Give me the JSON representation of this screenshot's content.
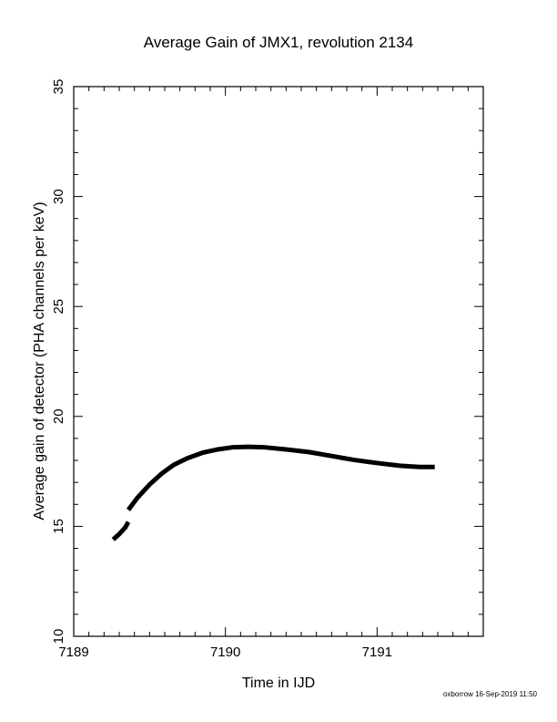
{
  "chart_data": {
    "type": "line",
    "title": "Average Gain of JMX1, revolution 2134",
    "xlabel": "Time in IJD",
    "ylabel": "Average gain of detector (PHA channels per keV)",
    "xlim": [
      7189,
      7191.7
    ],
    "ylim": [
      10,
      35
    ],
    "x_ticks": [
      7189,
      7190,
      7191
    ],
    "x_tick_labels": [
      "7189",
      "7190",
      "7191"
    ],
    "y_ticks": [
      10,
      15,
      20,
      25,
      30,
      35
    ],
    "y_tick_labels": [
      "10",
      "15",
      "20",
      "25",
      "30",
      "35"
    ],
    "grid": false,
    "line_color": "#000000",
    "series": [
      {
        "values": [
          {
            "x": 7189.26,
            "y": 14.4
          },
          {
            "x": 7189.3,
            "y": 14.65
          },
          {
            "x": 7189.34,
            "y": 14.95
          },
          {
            "x": 7189.36,
            "y": 15.2
          }
        ]
      },
      {
        "values": [
          {
            "x": 7189.36,
            "y": 15.75
          },
          {
            "x": 7189.42,
            "y": 16.3
          },
          {
            "x": 7189.5,
            "y": 16.9
          },
          {
            "x": 7189.58,
            "y": 17.4
          },
          {
            "x": 7189.66,
            "y": 17.8
          },
          {
            "x": 7189.75,
            "y": 18.1
          },
          {
            "x": 7189.85,
            "y": 18.35
          },
          {
            "x": 7189.95,
            "y": 18.5
          },
          {
            "x": 7190.05,
            "y": 18.6
          },
          {
            "x": 7190.15,
            "y": 18.62
          },
          {
            "x": 7190.25,
            "y": 18.6
          },
          {
            "x": 7190.4,
            "y": 18.5
          },
          {
            "x": 7190.55,
            "y": 18.38
          },
          {
            "x": 7190.7,
            "y": 18.2
          },
          {
            "x": 7190.85,
            "y": 18.02
          },
          {
            "x": 7191.0,
            "y": 17.88
          },
          {
            "x": 7191.15,
            "y": 17.76
          },
          {
            "x": 7191.28,
            "y": 17.7
          },
          {
            "x": 7191.38,
            "y": 17.7
          }
        ]
      }
    ]
  },
  "footer": "oxborrow 16-Sep-2019 11:50"
}
